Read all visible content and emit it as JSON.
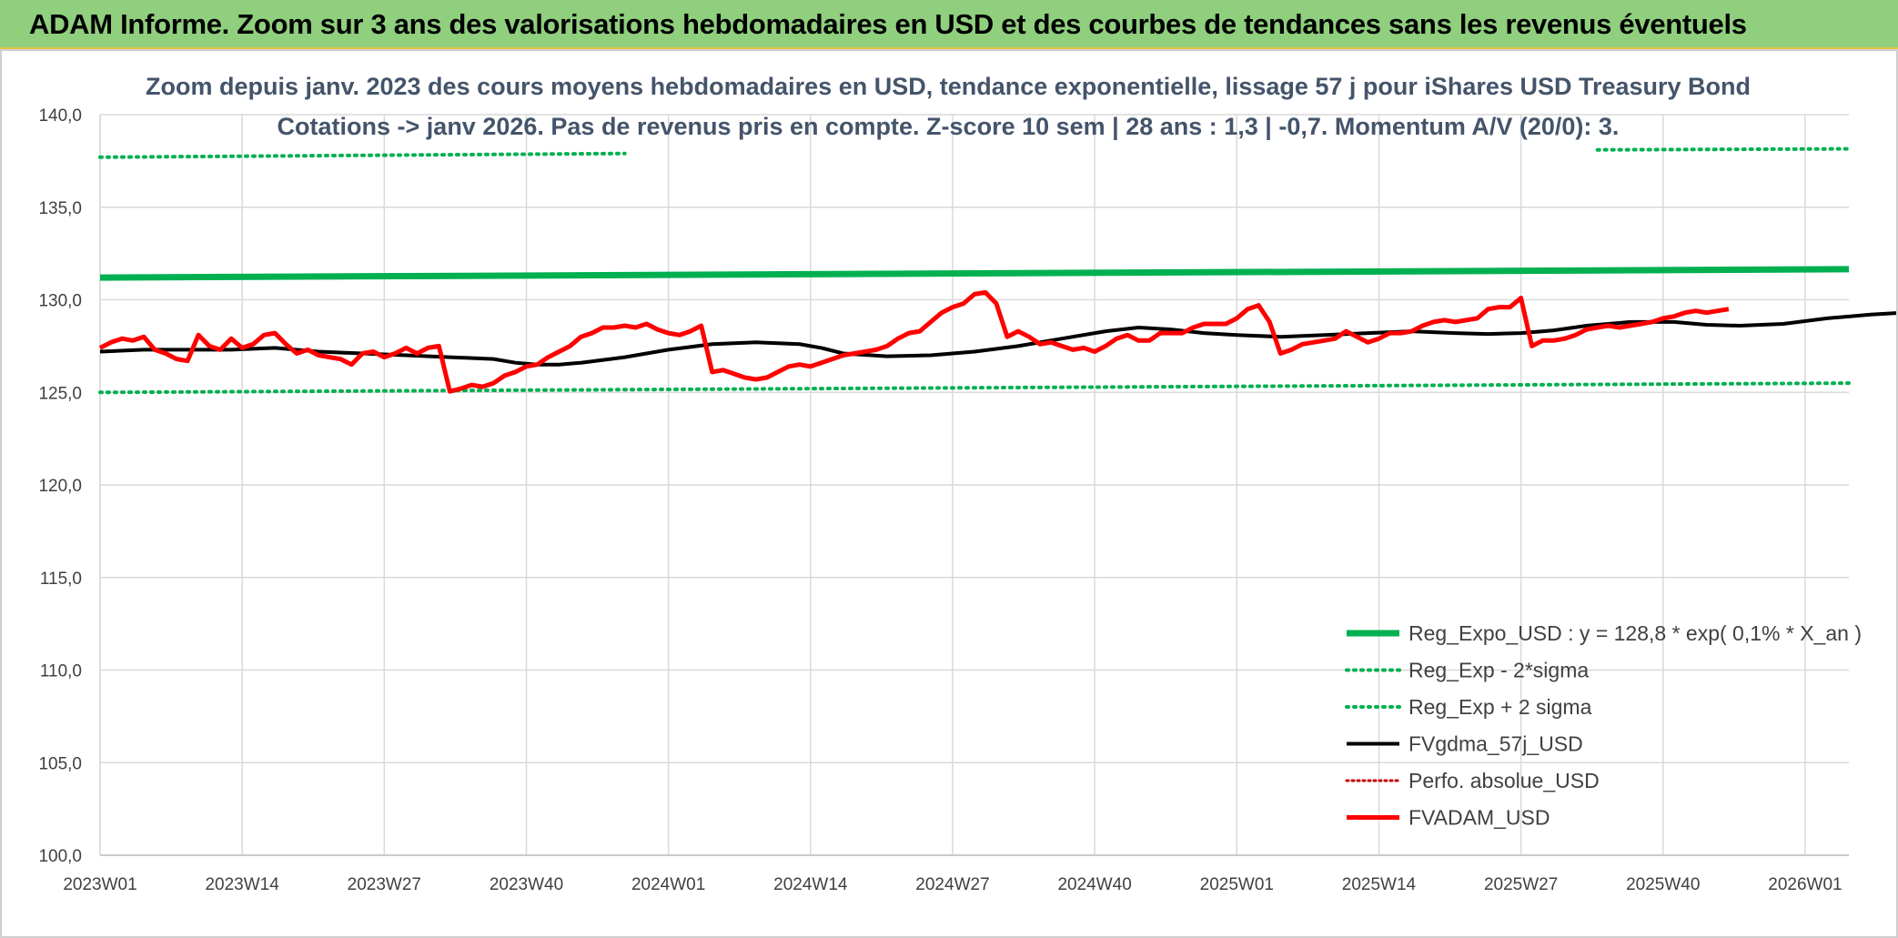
{
  "banner": {
    "title": "ADAM Informe. Zoom sur 3 ans des valorisations hebdomadaires en USD et des courbes de tendances sans les revenus éventuels"
  },
  "chart_data": {
    "type": "line",
    "title": "Zoom depuis janv. 2023 des cours moyens hebdomadaires en USD, tendance exponentielle, lissage 57 j pour iShares USD Treasury Bond",
    "subtitle": "Cotations -> janv 2026. Pas de revenus pris en compte. Z-score 10 sem | 28 ans : 1,3 | -0,7. Momentum A/V (20/0): 3.",
    "xlabel": "",
    "ylabel": "",
    "ylim": [
      100,
      140
    ],
    "yticks": [
      "100,0",
      "105,0",
      "110,0",
      "115,0",
      "120,0",
      "125,0",
      "130,0",
      "135,0",
      "140,0"
    ],
    "xticks": [
      "2023W01",
      "2023W14",
      "2023W27",
      "2023W40",
      "2024W01",
      "2024W14",
      "2024W27",
      "2024W40",
      "2025W01",
      "2025W14",
      "2025W27",
      "2025W40",
      "2026W01"
    ],
    "x_range_weeks": [
      0,
      160
    ],
    "grid": true,
    "legend_position": "bottom-right",
    "colors": {
      "reg": "#00b050",
      "fv": "#000000",
      "adam": "#ff0000",
      "perfo": "#c00000"
    },
    "series": [
      {
        "name": "Reg_Expo_USD : y = 128,8 * exp( 0,1% *  X_an )",
        "style": "thick-solid",
        "points": [
          [
            0,
            131.2
          ],
          [
            160,
            131.65
          ]
        ]
      },
      {
        "name": "Reg_Exp - 2*sigma",
        "style": "dotted",
        "points": [
          [
            0,
            125.0
          ],
          [
            160,
            125.5
          ]
        ]
      },
      {
        "name": "Reg_Exp + 2 sigma",
        "style": "dotted",
        "segments": [
          [
            [
              0,
              137.7
            ],
            [
              48,
              137.9
            ]
          ],
          [
            [
              137,
              138.1
            ],
            [
              160,
              138.15
            ]
          ]
        ]
      },
      {
        "name": "FVgdma_57j_USD",
        "style": "solid",
        "points": [
          [
            0,
            127.2
          ],
          [
            4,
            127.3
          ],
          [
            8,
            127.3
          ],
          [
            12,
            127.3
          ],
          [
            16,
            127.4
          ],
          [
            20,
            127.2
          ],
          [
            24,
            127.1
          ],
          [
            28,
            127.0
          ],
          [
            32,
            126.9
          ],
          [
            36,
            126.8
          ],
          [
            38,
            126.6
          ],
          [
            40,
            126.5
          ],
          [
            42,
            126.5
          ],
          [
            44,
            126.6
          ],
          [
            48,
            126.9
          ],
          [
            52,
            127.3
          ],
          [
            56,
            127.6
          ],
          [
            60,
            127.7
          ],
          [
            64,
            127.6
          ],
          [
            66,
            127.4
          ],
          [
            68,
            127.1
          ],
          [
            72,
            126.95
          ],
          [
            76,
            127.0
          ],
          [
            80,
            127.2
          ],
          [
            84,
            127.5
          ],
          [
            88,
            127.9
          ],
          [
            92,
            128.3
          ],
          [
            95,
            128.5
          ],
          [
            98,
            128.4
          ],
          [
            101,
            128.2
          ],
          [
            104,
            128.1
          ],
          [
            108,
            128.0
          ],
          [
            112,
            128.1
          ],
          [
            116,
            128.2
          ],
          [
            120,
            128.3
          ],
          [
            124,
            128.2
          ],
          [
            127,
            128.15
          ],
          [
            130,
            128.2
          ],
          [
            133,
            128.35
          ],
          [
            136,
            128.6
          ],
          [
            140,
            128.8
          ],
          [
            144,
            128.8
          ],
          [
            147,
            128.65
          ],
          [
            150,
            128.6
          ],
          [
            154,
            128.7
          ],
          [
            158,
            129.0
          ],
          [
            162,
            129.2
          ],
          [
            165,
            129.3
          ]
        ]
      },
      {
        "name": "Perfo. absolue_USD",
        "style": "dotted-red",
        "points": []
      },
      {
        "name": "FVADAM_USD",
        "style": "thick-solid",
        "points": [
          [
            0,
            127.4
          ],
          [
            1,
            127.7
          ],
          [
            2,
            127.9
          ],
          [
            3,
            127.8
          ],
          [
            4,
            128.0
          ],
          [
            5,
            127.3
          ],
          [
            6,
            127.1
          ],
          [
            7,
            126.8
          ],
          [
            8,
            126.7
          ],
          [
            9,
            128.1
          ],
          [
            10,
            127.5
          ],
          [
            11,
            127.3
          ],
          [
            12,
            127.9
          ],
          [
            13,
            127.4
          ],
          [
            14,
            127.6
          ],
          [
            15,
            128.1
          ],
          [
            16,
            128.2
          ],
          [
            17,
            127.6
          ],
          [
            18,
            127.1
          ],
          [
            19,
            127.3
          ],
          [
            20,
            127.0
          ],
          [
            21,
            126.9
          ],
          [
            22,
            126.8
          ],
          [
            23,
            126.5
          ],
          [
            24,
            127.1
          ],
          [
            25,
            127.2
          ],
          [
            26,
            126.9
          ],
          [
            27,
            127.1
          ],
          [
            28,
            127.4
          ],
          [
            29,
            127.1
          ],
          [
            30,
            127.4
          ],
          [
            31,
            127.5
          ],
          [
            32,
            125.05
          ],
          [
            33,
            125.2
          ],
          [
            34,
            125.4
          ],
          [
            35,
            125.3
          ],
          [
            36,
            125.5
          ],
          [
            37,
            125.9
          ],
          [
            38,
            126.1
          ],
          [
            39,
            126.4
          ],
          [
            40,
            126.5
          ],
          [
            41,
            126.9
          ],
          [
            42,
            127.2
          ],
          [
            43,
            127.5
          ],
          [
            44,
            128.0
          ],
          [
            45,
            128.2
          ],
          [
            46,
            128.5
          ],
          [
            47,
            128.5
          ],
          [
            48,
            128.6
          ],
          [
            49,
            128.5
          ],
          [
            50,
            128.7
          ],
          [
            51,
            128.4
          ],
          [
            52,
            128.2
          ],
          [
            53,
            128.1
          ],
          [
            54,
            128.3
          ],
          [
            55,
            128.6
          ],
          [
            56,
            126.1
          ],
          [
            57,
            126.2
          ],
          [
            58,
            126.0
          ],
          [
            59,
            125.8
          ],
          [
            60,
            125.7
          ],
          [
            61,
            125.8
          ],
          [
            62,
            126.1
          ],
          [
            63,
            126.4
          ],
          [
            64,
            126.5
          ],
          [
            65,
            126.4
          ],
          [
            66,
            126.6
          ],
          [
            67,
            126.8
          ],
          [
            68,
            127.0
          ],
          [
            69,
            127.1
          ],
          [
            70,
            127.2
          ],
          [
            71,
            127.3
          ],
          [
            72,
            127.5
          ],
          [
            73,
            127.9
          ],
          [
            74,
            128.2
          ],
          [
            75,
            128.3
          ],
          [
            76,
            128.8
          ],
          [
            77,
            129.3
          ],
          [
            78,
            129.6
          ],
          [
            79,
            129.8
          ],
          [
            80,
            130.3
          ],
          [
            81,
            130.4
          ],
          [
            82,
            129.8
          ],
          [
            83,
            128.0
          ],
          [
            84,
            128.3
          ],
          [
            85,
            128.0
          ],
          [
            86,
            127.6
          ],
          [
            87,
            127.7
          ],
          [
            88,
            127.5
          ],
          [
            89,
            127.3
          ],
          [
            90,
            127.4
          ],
          [
            91,
            127.2
          ],
          [
            92,
            127.5
          ],
          [
            93,
            127.9
          ],
          [
            94,
            128.1
          ],
          [
            95,
            127.8
          ],
          [
            96,
            127.8
          ],
          [
            97,
            128.2
          ],
          [
            98,
            128.2
          ],
          [
            99,
            128.2
          ],
          [
            100,
            128.5
          ],
          [
            101,
            128.7
          ],
          [
            102,
            128.7
          ],
          [
            103,
            128.7
          ],
          [
            104,
            129.0
          ],
          [
            105,
            129.5
          ],
          [
            106,
            129.7
          ],
          [
            107,
            128.8
          ],
          [
            108,
            127.1
          ],
          [
            109,
            127.3
          ],
          [
            110,
            127.6
          ],
          [
            111,
            127.7
          ],
          [
            112,
            127.8
          ],
          [
            113,
            127.9
          ],
          [
            114,
            128.3
          ],
          [
            115,
            128.0
          ],
          [
            116,
            127.7
          ],
          [
            117,
            127.9
          ],
          [
            118,
            128.2
          ],
          [
            119,
            128.2
          ],
          [
            120,
            128.3
          ],
          [
            121,
            128.6
          ],
          [
            122,
            128.8
          ],
          [
            123,
            128.9
          ],
          [
            124,
            128.8
          ],
          [
            125,
            128.9
          ],
          [
            126,
            129.0
          ],
          [
            127,
            129.5
          ],
          [
            128,
            129.6
          ],
          [
            129,
            129.6
          ],
          [
            130,
            130.1
          ],
          [
            131,
            127.5
          ],
          [
            132,
            127.8
          ],
          [
            133,
            127.8
          ],
          [
            134,
            127.9
          ],
          [
            135,
            128.1
          ],
          [
            136,
            128.4
          ],
          [
            137,
            128.5
          ],
          [
            138,
            128.6
          ],
          [
            139,
            128.5
          ],
          [
            140,
            128.6
          ],
          [
            141,
            128.7
          ],
          [
            142,
            128.8
          ],
          [
            143,
            129.0
          ],
          [
            144,
            129.1
          ],
          [
            145,
            129.3
          ],
          [
            146,
            129.4
          ],
          [
            147,
            129.3
          ],
          [
            148,
            129.4
          ],
          [
            149,
            129.5
          ]
        ]
      }
    ]
  }
}
